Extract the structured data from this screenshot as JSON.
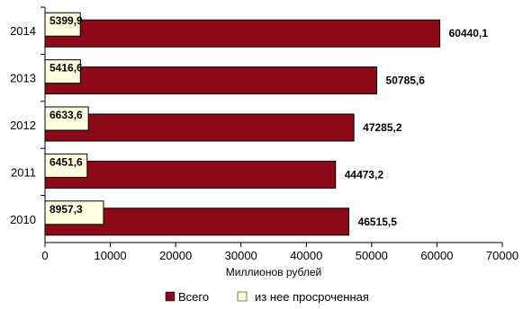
{
  "chart_data": {
    "type": "bar",
    "orientation": "horizontal",
    "categories": [
      "2014",
      "2013",
      "2012",
      "2011",
      "2010"
    ],
    "series": [
      {
        "name": "Всего",
        "color": "#8b0a1a",
        "values": [
          60440.1,
          50785.6,
          47285.2,
          44473.2,
          46515.5
        ]
      },
      {
        "name": "из нее просроченная",
        "color": "#ffffe0",
        "values": [
          5399.9,
          5416.6,
          6633.6,
          6451.6,
          8957.3
        ]
      }
    ],
    "data_labels": {
      "total": [
        "60440,1",
        "50785,6",
        "47285,2",
        "44473,2",
        "46515,5"
      ],
      "overdue": [
        "5399,9",
        "5416,6",
        "6633,6",
        "6451,6",
        "8957,3"
      ]
    },
    "xlim": [
      0,
      70000
    ],
    "xticks": [
      0,
      10000,
      20000,
      30000,
      40000,
      50000,
      60000,
      70000
    ],
    "xlabel": "Миллионов рублей",
    "ylabel": "",
    "grid": false,
    "legend_position": "bottom"
  }
}
